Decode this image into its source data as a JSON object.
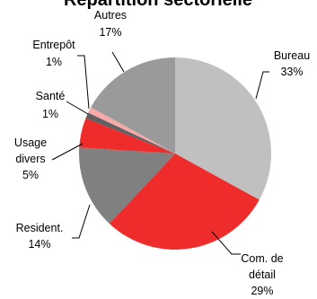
{
  "chart_data": {
    "type": "pie",
    "title": "Répartition sectorielle",
    "slices": [
      {
        "name": "Bureau",
        "value": 33,
        "label": "Bureau",
        "pct_label": "33%",
        "color": "#c0c0c0"
      },
      {
        "name": "Com. de détail",
        "value": 29,
        "label_lines": [
          "Com. de",
          "détail"
        ],
        "pct_label": "29%",
        "color": "#ee2c2c"
      },
      {
        "name": "Resident.",
        "value": 14,
        "label": "Resident.",
        "pct_label": "14%",
        "color": "#808080"
      },
      {
        "name": "Usage divers",
        "value": 5,
        "label_lines": [
          "Usage",
          "divers"
        ],
        "pct_label": "5%",
        "color": "#ee2c2c"
      },
      {
        "name": "Santé",
        "value": 1,
        "label": "Santé",
        "pct_label": "1%",
        "color": "#606060"
      },
      {
        "name": "Entrepôt",
        "value": 1,
        "label": "Entrepôt",
        "pct_label": "1%",
        "color": "#f7a8a8"
      },
      {
        "name": "Autres",
        "value": 17,
        "label": "Autres",
        "pct_label": "17%",
        "color": "#9a9a9a"
      }
    ]
  }
}
